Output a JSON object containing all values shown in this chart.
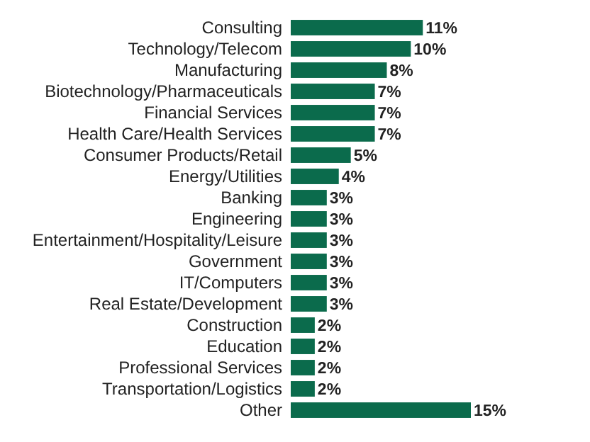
{
  "chart_data": {
    "type": "bar",
    "orientation": "horizontal",
    "color": "#0b6b4c",
    "categories": [
      "Consulting",
      "Technology/Telecom",
      "Manufacturing",
      "Biotechnology/Pharmaceuticals",
      "Financial Services",
      "Health Care/Health Services",
      "Consumer Products/Retail",
      "Energy/Utilities",
      "Banking",
      "Engineering",
      "Entertainment/Hospitality/Leisure",
      "Government",
      "IT/Computers",
      "Real Estate/Development",
      "Construction",
      "Education",
      "Professional Services",
      "Transportation/Logistics",
      "Other"
    ],
    "values": [
      11,
      10,
      8,
      7,
      7,
      7,
      5,
      4,
      3,
      3,
      3,
      3,
      3,
      3,
      2,
      2,
      2,
      2,
      15
    ],
    "value_labels": [
      "11%",
      "10%",
      "8%",
      "7%",
      "7%",
      "7%",
      "5%",
      "4%",
      "3%",
      "3%",
      "3%",
      "3%",
      "3%",
      "3%",
      "2%",
      "2%",
      "2%",
      "2%",
      "15%"
    ]
  }
}
